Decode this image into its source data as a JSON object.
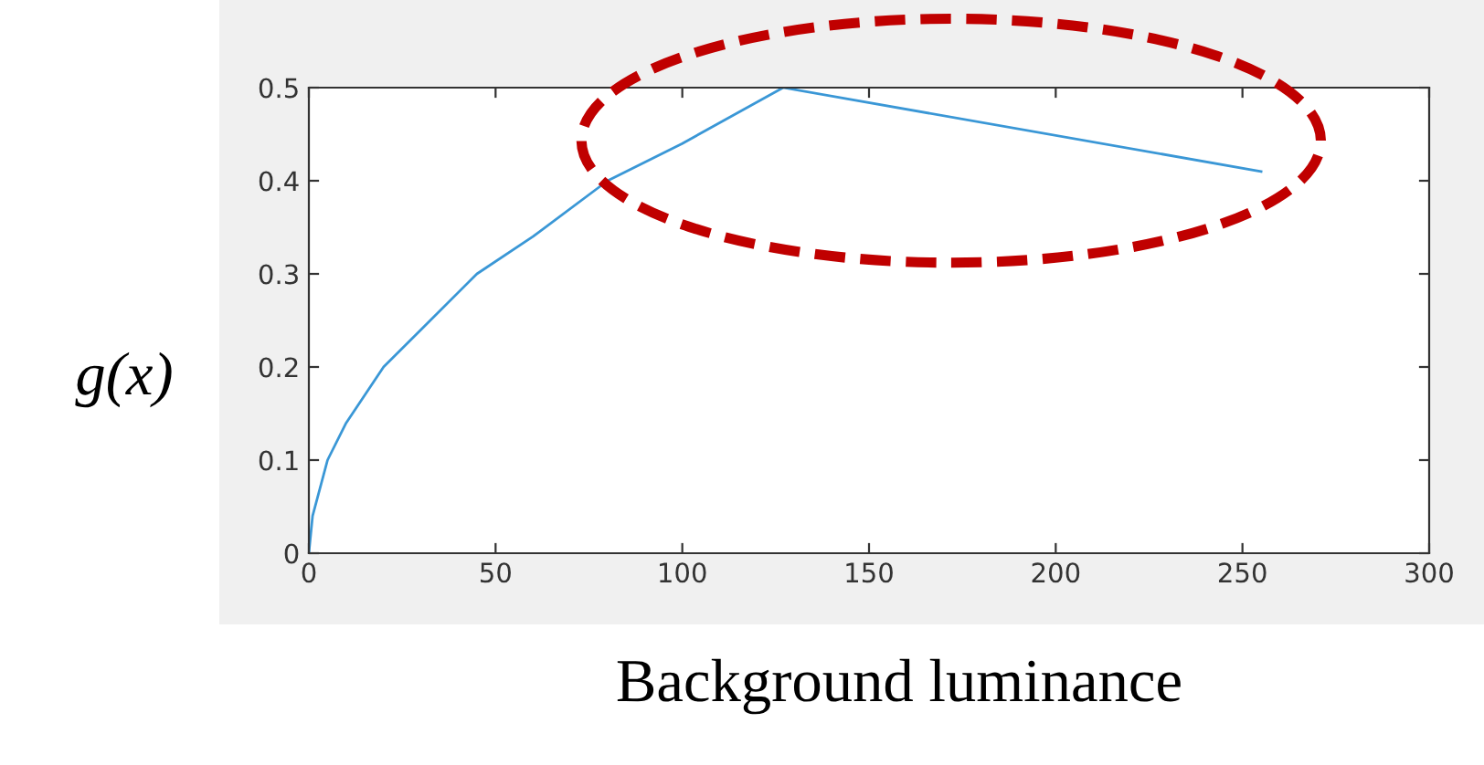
{
  "chart_data": {
    "type": "line",
    "xlabel": "Background luminance",
    "ylabel": "g(x)",
    "x": [
      0,
      1,
      5,
      10,
      20,
      30,
      45,
      60,
      80,
      100,
      127,
      255
    ],
    "series": [
      {
        "color": "#3a97d6",
        "values": [
          0,
          0.04,
          0.1,
          0.14,
          0.2,
          0.24,
          0.3,
          0.34,
          0.4,
          0.44,
          0.5,
          0.41
        ]
      }
    ],
    "xlim": [
      0,
      300
    ],
    "xticks": [
      0,
      50,
      100,
      150,
      200,
      250,
      300
    ],
    "ylim": [
      0,
      0.5
    ],
    "yticks": [
      0,
      0.1,
      0.2,
      0.3,
      0.4,
      0.5
    ],
    "grid": false,
    "legend": false,
    "marker": "none",
    "line_style": "solid"
  }
}
